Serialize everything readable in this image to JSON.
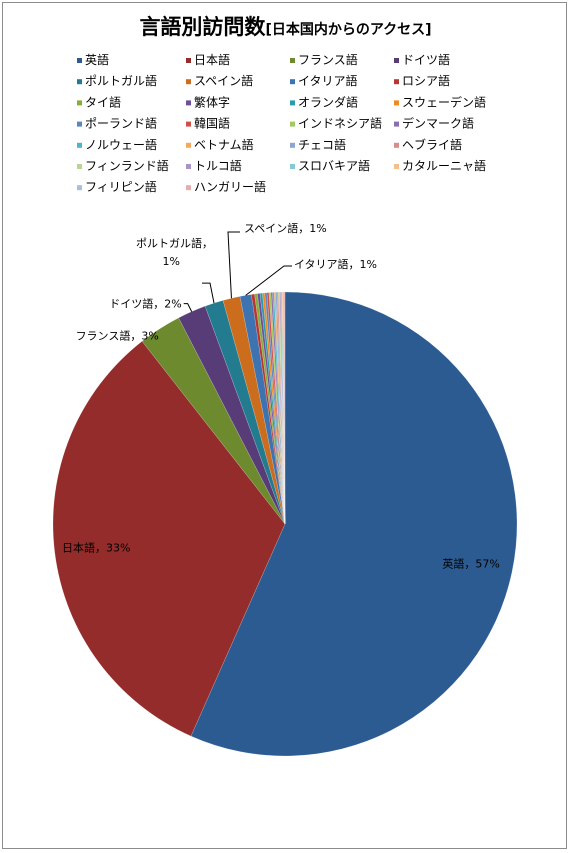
{
  "chart_data": {
    "type": "pie",
    "title": "言語別訪問数",
    "subtitle": "[日本国内からのアクセス]",
    "legend_position": "top",
    "series": [
      {
        "name": "英語",
        "value": 57,
        "color": "#2c5b91",
        "label": "英語，57%"
      },
      {
        "name": "日本語",
        "value": 33,
        "color": "#932c2a",
        "label": "日本語，33%"
      },
      {
        "name": "フランス語",
        "value": 3,
        "color": "#6d8a2f",
        "label": "フランス語，3%"
      },
      {
        "name": "ドイツ語",
        "value": 2,
        "color": "#583c77",
        "label": "ドイツ語，2%"
      },
      {
        "name": "ポルトガル語",
        "value": 1.3,
        "color": "#237b8f",
        "label": "ポルトガル語，1%"
      },
      {
        "name": "スペイン語",
        "value": 1.2,
        "color": "#cc6c1d",
        "label": "スペイン語，1%"
      },
      {
        "name": "イタリア語",
        "value": 0.8,
        "color": "#3d73b0",
        "label": "イタリア語，1%"
      },
      {
        "name": "ロシア語",
        "value": 0.22,
        "color": "#b73632",
        "label": ""
      },
      {
        "name": "タイ語",
        "value": 0.2,
        "color": "#86ad3c",
        "label": ""
      },
      {
        "name": "繁体字",
        "value": 0.18,
        "color": "#6f4f97",
        "label": ""
      },
      {
        "name": "オランダ語",
        "value": 0.17,
        "color": "#2a9ab0",
        "label": ""
      },
      {
        "name": "スウェーデン語",
        "value": 0.16,
        "color": "#f08a1f",
        "label": ""
      },
      {
        "name": "ポーランド語",
        "value": 0.15,
        "color": "#5b86c2",
        "label": ""
      },
      {
        "name": "韓国語",
        "value": 0.14,
        "color": "#d04f4b",
        "label": ""
      },
      {
        "name": "インドネシア語",
        "value": 0.13,
        "color": "#a3c761",
        "label": ""
      },
      {
        "name": "デンマーク語",
        "value": 0.12,
        "color": "#8b6db0",
        "label": ""
      },
      {
        "name": "ノルウェー語",
        "value": 0.11,
        "color": "#4bb5c9",
        "label": ""
      },
      {
        "name": "ベトナム語",
        "value": 0.1,
        "color": "#f6a85a",
        "label": ""
      },
      {
        "name": "チェコ語",
        "value": 0.1,
        "color": "#8aa6d1",
        "label": ""
      },
      {
        "name": "ヘブライ語",
        "value": 0.09,
        "color": "#d98c89",
        "label": ""
      },
      {
        "name": "フィンランド語",
        "value": 0.09,
        "color": "#bcd58e",
        "label": ""
      },
      {
        "name": "トルコ語",
        "value": 0.08,
        "color": "#a894c6",
        "label": ""
      },
      {
        "name": "スロバキア語",
        "value": 0.08,
        "color": "#86c8d6",
        "label": ""
      },
      {
        "name": "カタルーニャ語",
        "value": 0.07,
        "color": "#f4bf8d",
        "label": ""
      },
      {
        "name": "フィリピン語",
        "value": 0.07,
        "color": "#a9bde0",
        "label": ""
      },
      {
        "name": "ハンガリー語",
        "value": 0.07,
        "color": "#e3aeac",
        "label": ""
      }
    ]
  }
}
